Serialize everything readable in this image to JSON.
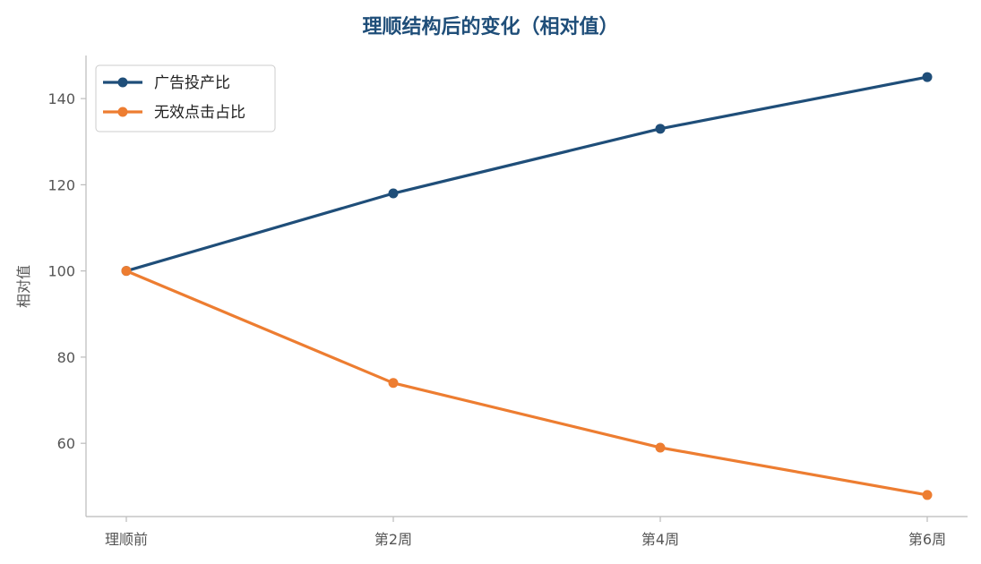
{
  "chart_data": {
    "type": "line",
    "title": "理顺结构后的变化（相对值）",
    "xlabel": "",
    "ylabel": "相对值",
    "categories": [
      "理顺前",
      "第2周",
      "第4周",
      "第6周"
    ],
    "series": [
      {
        "name": "广告投产比",
        "color": "#1f4e79",
        "values": [
          100,
          118,
          133,
          145
        ]
      },
      {
        "name": "无效点击占比",
        "color": "#ed7d31",
        "values": [
          100,
          74,
          59,
          48
        ]
      }
    ],
    "ylim": [
      43,
      150
    ],
    "yticks": [
      60,
      80,
      100,
      120,
      140
    ],
    "grid": false,
    "legend_position": "top-left"
  }
}
